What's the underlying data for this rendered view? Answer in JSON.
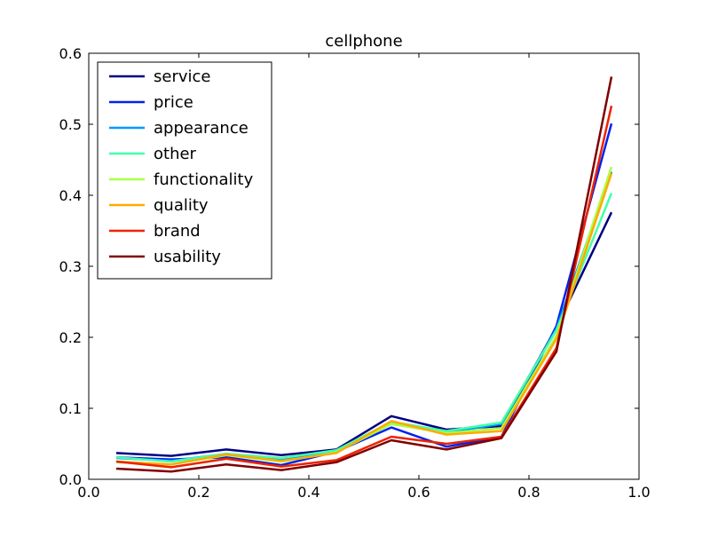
{
  "chart_data": {
    "type": "line",
    "title": "cellphone",
    "xlabel": "",
    "ylabel": "",
    "xlim": [
      0.0,
      1.0
    ],
    "ylim": [
      0.0,
      0.6
    ],
    "x_ticks": [
      "0.0",
      "0.2",
      "0.4",
      "0.6",
      "0.8",
      "1.0"
    ],
    "y_ticks": [
      "0.0",
      "0.1",
      "0.2",
      "0.3",
      "0.4",
      "0.5",
      "0.6"
    ],
    "grid": false,
    "legend_position": "upper-left",
    "x": [
      0.05,
      0.15,
      0.25,
      0.35,
      0.45,
      0.55,
      0.65,
      0.75,
      0.85,
      0.95
    ],
    "series": [
      {
        "name": "service",
        "color": "#000080",
        "values": [
          0.037,
          0.033,
          0.042,
          0.034,
          0.042,
          0.089,
          0.07,
          0.075,
          0.214,
          0.376
        ]
      },
      {
        "name": "price",
        "color": "#0022ee",
        "values": [
          0.031,
          0.028,
          0.031,
          0.02,
          0.039,
          0.073,
          0.046,
          0.06,
          0.216,
          0.501
        ]
      },
      {
        "name": "appearance",
        "color": "#0099ff",
        "values": [
          0.03,
          0.026,
          0.036,
          0.027,
          0.041,
          0.078,
          0.066,
          0.078,
          0.212,
          0.433
        ]
      },
      {
        "name": "other",
        "color": "#44ffaa",
        "values": [
          0.031,
          0.025,
          0.036,
          0.03,
          0.041,
          0.081,
          0.068,
          0.08,
          0.21,
          0.403
        ]
      },
      {
        "name": "functionality",
        "color": "#aaff44",
        "values": [
          0.024,
          0.021,
          0.034,
          0.025,
          0.038,
          0.078,
          0.065,
          0.072,
          0.202,
          0.44
        ]
      },
      {
        "name": "quality",
        "color": "#ffaa00",
        "values": [
          0.025,
          0.021,
          0.035,
          0.026,
          0.037,
          0.082,
          0.063,
          0.068,
          0.198,
          0.431
        ]
      },
      {
        "name": "brand",
        "color": "#ee2200",
        "values": [
          0.025,
          0.017,
          0.029,
          0.018,
          0.027,
          0.06,
          0.05,
          0.06,
          0.185,
          0.526
        ]
      },
      {
        "name": "usability",
        "color": "#800000",
        "values": [
          0.015,
          0.011,
          0.021,
          0.013,
          0.024,
          0.055,
          0.042,
          0.058,
          0.18,
          0.567
        ]
      }
    ]
  }
}
